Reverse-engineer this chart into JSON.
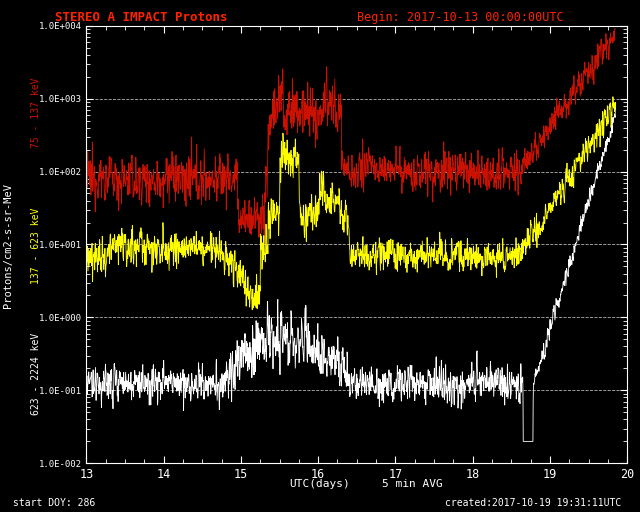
{
  "title_left": "STEREO A IMPACT Protons",
  "title_right": "Begin: 2017-10-13 00:00:00UTC",
  "xlabel": "UTC(days)",
  "xlabel_extra": "5 min AVG",
  "footer_left": "start DOY: 286",
  "footer_right": "created:2017-10-19 19:31:11UTC",
  "ylabel_main": "Protons/cm2-s-sr-MeV",
  "ylabel_red": "75 - 137 keV",
  "ylabel_yellow": "137 - 623 keV",
  "ylabel_white": "623 - 2224 keV",
  "xmin": 13,
  "xmax": 20,
  "ymin": 0.01,
  "ymax": 10000,
  "background_color": "#000000",
  "red_color": "#cc1100",
  "yellow_color": "#ffff00",
  "white_color": "#ffffff",
  "grid_color": "#aaaaaa",
  "text_color_red": "#ff2200",
  "text_color_white": "#ffffff",
  "text_color_yellow": "#ffff00"
}
